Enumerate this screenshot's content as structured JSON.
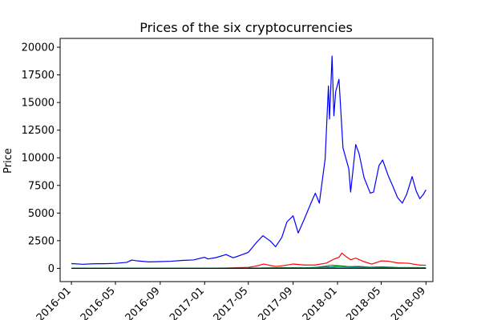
{
  "chart_data": {
    "type": "line",
    "title": "Prices of the six cryptocurrencies",
    "xlabel": "",
    "ylabel": "Price",
    "xlim": [
      "2015-12-01",
      "2018-09-20"
    ],
    "ylim": [
      -1200,
      20800
    ],
    "grid": false,
    "legend": "none",
    "x_ticks": [
      "2016-01",
      "2016-05",
      "2016-09",
      "2017-01",
      "2017-05",
      "2017-09",
      "2018-01",
      "2018-05",
      "2018-09"
    ],
    "y_ticks": [
      0,
      2500,
      5000,
      7500,
      10000,
      12500,
      15000,
      17500,
      20000
    ],
    "series": [
      {
        "color": "#0000ff",
        "points": [
          [
            "2016-01-01",
            430
          ],
          [
            "2016-02-01",
            370
          ],
          [
            "2016-03-01",
            410
          ],
          [
            "2016-04-01",
            420
          ],
          [
            "2016-05-01",
            450
          ],
          [
            "2016-06-01",
            540
          ],
          [
            "2016-06-15",
            750
          ],
          [
            "2016-07-01",
            670
          ],
          [
            "2016-08-01",
            580
          ],
          [
            "2016-09-01",
            610
          ],
          [
            "2016-10-01",
            640
          ],
          [
            "2016-11-01",
            720
          ],
          [
            "2016-12-01",
            760
          ],
          [
            "2017-01-01",
            1000
          ],
          [
            "2017-01-10",
            850
          ],
          [
            "2017-02-01",
            970
          ],
          [
            "2017-03-01",
            1250
          ],
          [
            "2017-03-20",
            960
          ],
          [
            "2017-04-01",
            1080
          ],
          [
            "2017-05-01",
            1450
          ],
          [
            "2017-05-25",
            2400
          ],
          [
            "2017-06-10",
            2950
          ],
          [
            "2017-07-01",
            2450
          ],
          [
            "2017-07-15",
            1950
          ],
          [
            "2017-08-01",
            2800
          ],
          [
            "2017-08-15",
            4200
          ],
          [
            "2017-09-01",
            4750
          ],
          [
            "2017-09-15",
            3200
          ],
          [
            "2017-10-01",
            4400
          ],
          [
            "2017-10-20",
            5900
          ],
          [
            "2017-11-01",
            6800
          ],
          [
            "2017-11-12",
            5900
          ],
          [
            "2017-11-28",
            9900
          ],
          [
            "2017-12-07",
            16500
          ],
          [
            "2017-12-10",
            13500
          ],
          [
            "2017-12-17",
            19200
          ],
          [
            "2017-12-22",
            13800
          ],
          [
            "2017-12-27",
            16000
          ],
          [
            "2018-01-05",
            17100
          ],
          [
            "2018-01-16",
            10900
          ],
          [
            "2018-02-01",
            9000
          ],
          [
            "2018-02-06",
            6900
          ],
          [
            "2018-02-20",
            11200
          ],
          [
            "2018-03-01",
            10400
          ],
          [
            "2018-03-15",
            8200
          ],
          [
            "2018-04-01",
            6800
          ],
          [
            "2018-04-10",
            6900
          ],
          [
            "2018-04-25",
            9300
          ],
          [
            "2018-05-05",
            9800
          ],
          [
            "2018-05-20",
            8400
          ],
          [
            "2018-06-01",
            7500
          ],
          [
            "2018-06-15",
            6400
          ],
          [
            "2018-06-28",
            5900
          ],
          [
            "2018-07-10",
            6700
          ],
          [
            "2018-07-25",
            8300
          ],
          [
            "2018-08-05",
            7000
          ],
          [
            "2018-08-15",
            6300
          ],
          [
            "2018-08-25",
            6700
          ],
          [
            "2018-09-01",
            7100
          ]
        ]
      },
      {
        "color": "#ff0000",
        "points": [
          [
            "2016-01-01",
            1
          ],
          [
            "2016-06-01",
            14
          ],
          [
            "2017-01-01",
            10
          ],
          [
            "2017-03-01",
            30
          ],
          [
            "2017-05-01",
            90
          ],
          [
            "2017-05-20",
            190
          ],
          [
            "2017-06-12",
            390
          ],
          [
            "2017-07-15",
            170
          ],
          [
            "2017-08-01",
            225
          ],
          [
            "2017-09-01",
            390
          ],
          [
            "2017-10-01",
            300
          ],
          [
            "2017-11-01",
            300
          ],
          [
            "2017-12-01",
            470
          ],
          [
            "2017-12-20",
            800
          ],
          [
            "2018-01-05",
            1000
          ],
          [
            "2018-01-13",
            1380
          ],
          [
            "2018-01-25",
            1050
          ],
          [
            "2018-02-06",
            780
          ],
          [
            "2018-02-20",
            920
          ],
          [
            "2018-03-15",
            600
          ],
          [
            "2018-04-05",
            390
          ],
          [
            "2018-05-01",
            670
          ],
          [
            "2018-05-20",
            650
          ],
          [
            "2018-06-15",
            490
          ],
          [
            "2018-07-15",
            460
          ],
          [
            "2018-08-15",
            290
          ],
          [
            "2018-09-01",
            280
          ]
        ]
      },
      {
        "color": "#808080",
        "points": [
          [
            "2016-01-01",
            3
          ],
          [
            "2017-01-01",
            4
          ],
          [
            "2017-05-01",
            25
          ],
          [
            "2017-06-15",
            45
          ],
          [
            "2017-09-01",
            70
          ],
          [
            "2017-11-01",
            60
          ],
          [
            "2017-12-15",
            300
          ],
          [
            "2018-01-05",
            240
          ],
          [
            "2018-02-01",
            160
          ],
          [
            "2018-03-01",
            190
          ],
          [
            "2018-04-01",
            115
          ],
          [
            "2018-05-01",
            140
          ],
          [
            "2018-06-15",
            90
          ],
          [
            "2018-08-01",
            75
          ],
          [
            "2018-09-01",
            60
          ]
        ]
      },
      {
        "color": "#008000",
        "points": [
          [
            "2016-01-01",
            1
          ],
          [
            "2017-01-01",
            1
          ],
          [
            "2017-05-01",
            5
          ],
          [
            "2017-08-01",
            50
          ],
          [
            "2017-10-01",
            40
          ],
          [
            "2017-12-15",
            160
          ],
          [
            "2018-01-05",
            220
          ],
          [
            "2018-02-01",
            140
          ],
          [
            "2018-03-01",
            140
          ],
          [
            "2018-04-01",
            70
          ],
          [
            "2018-05-01",
            110
          ],
          [
            "2018-06-15",
            60
          ],
          [
            "2018-08-01",
            45
          ],
          [
            "2018-09-01",
            40
          ]
        ]
      },
      {
        "color": "#00bfbf",
        "points": [
          [
            "2016-01-01",
            1
          ],
          [
            "2017-06-01",
            3
          ],
          [
            "2017-12-01",
            50
          ],
          [
            "2018-01-10",
            110
          ],
          [
            "2018-03-01",
            50
          ],
          [
            "2018-05-01",
            30
          ],
          [
            "2018-09-01",
            20
          ]
        ]
      },
      {
        "color": "#000000",
        "points": [
          [
            "2016-01-01",
            0
          ],
          [
            "2017-01-01",
            0
          ],
          [
            "2017-12-01",
            2
          ],
          [
            "2018-01-10",
            3
          ],
          [
            "2018-09-01",
            1
          ]
        ]
      }
    ]
  }
}
